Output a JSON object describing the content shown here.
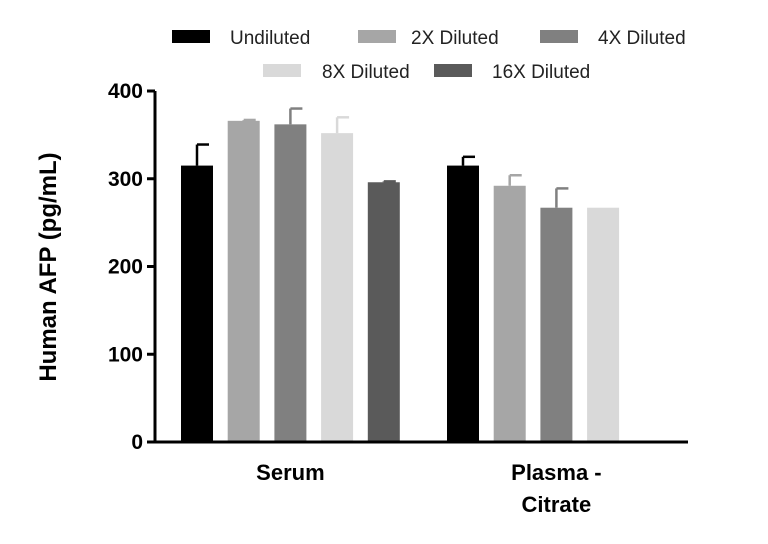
{
  "chart_data": {
    "type": "bar",
    "categories": [
      "Serum",
      "Plasma - Citrate"
    ],
    "category_lines": [
      [
        "Serum"
      ],
      [
        "Plasma -",
        "Citrate"
      ]
    ],
    "ylabel": "Human AFP (pg/mL)",
    "ylim": [
      0,
      400
    ],
    "yticks": [
      0,
      100,
      200,
      300,
      400
    ],
    "grid": false,
    "legend_position": "top",
    "series": [
      {
        "name": "Undiluted",
        "color": "#000000",
        "values": [
          315,
          315
        ],
        "errors": [
          24,
          10
        ]
      },
      {
        "name": "2X Diluted",
        "color": "#a6a6a6",
        "values": [
          366,
          292
        ],
        "errors": [
          1,
          12
        ]
      },
      {
        "name": "4X Diluted",
        "color": "#808080",
        "values": [
          362,
          267
        ],
        "errors": [
          18,
          22
        ]
      },
      {
        "name": "8X Diluted",
        "color": "#d9d9d9",
        "values": [
          352,
          267
        ],
        "errors": [
          18,
          0
        ]
      },
      {
        "name": "16X Diluted",
        "color": "#5a5a5a",
        "values": [
          296,
          null
        ],
        "errors": [
          1,
          null
        ]
      }
    ]
  }
}
